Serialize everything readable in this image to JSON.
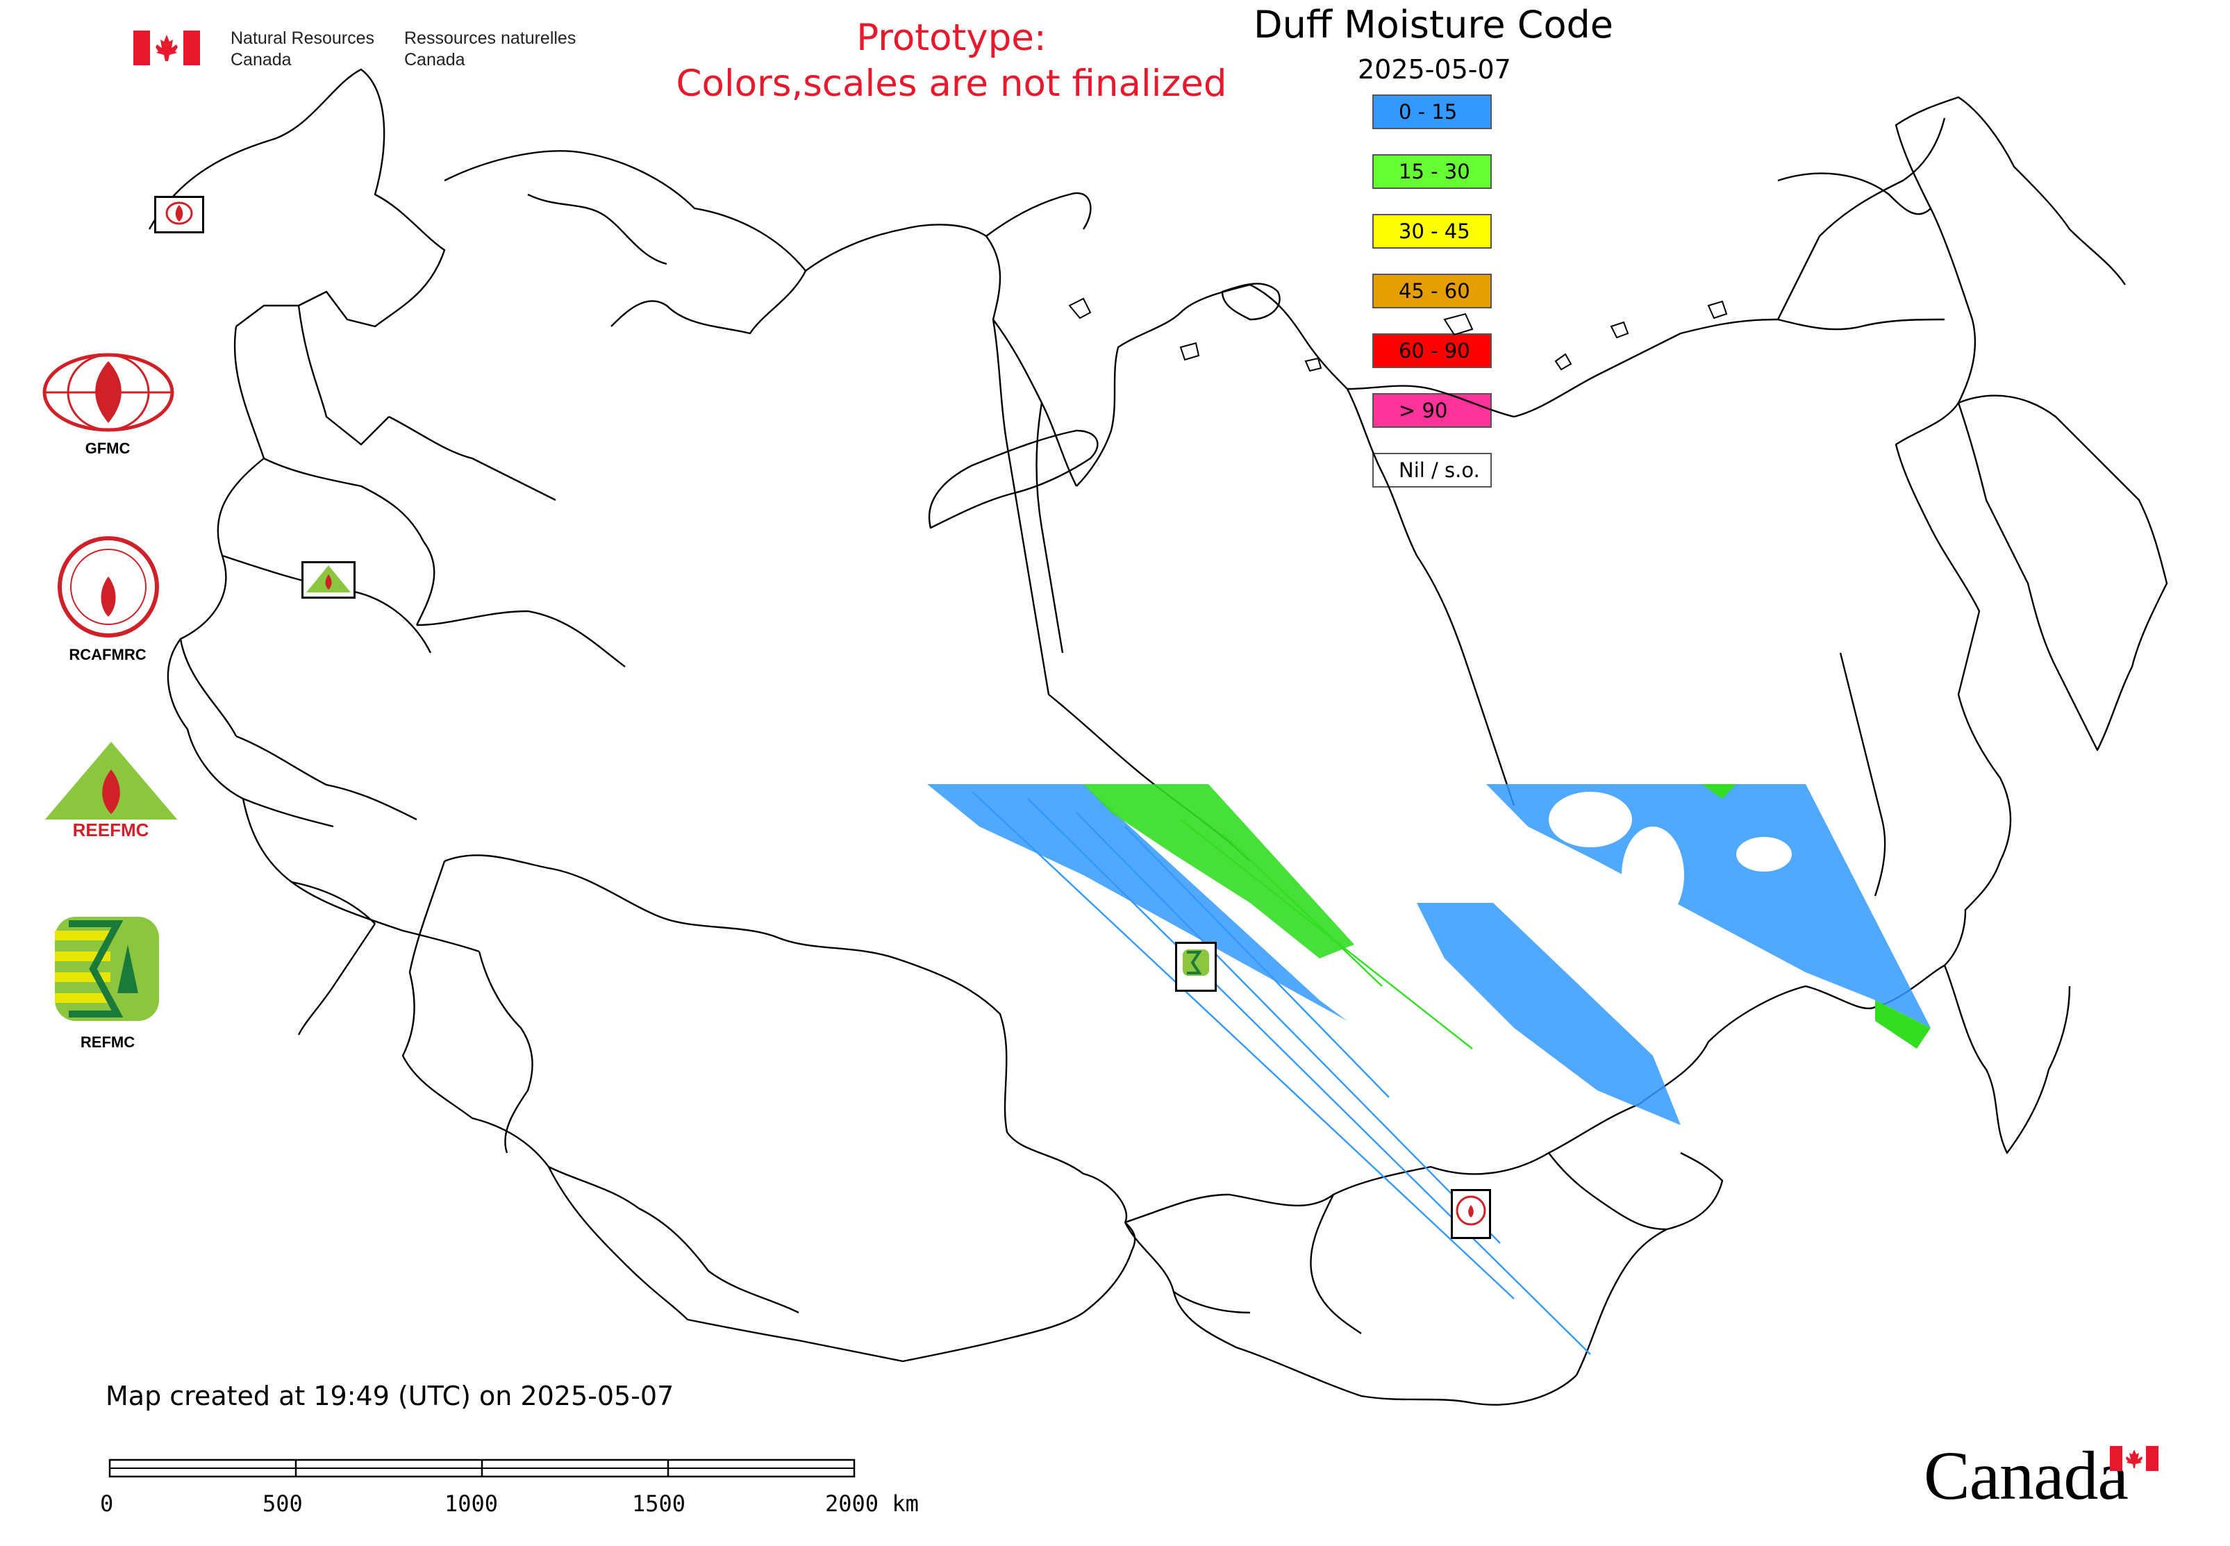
{
  "header": {
    "agency_en_1": "Natural Resources",
    "agency_en_2": "Canada",
    "agency_fr_1": "Ressources naturelles",
    "agency_fr_2": "Canada",
    "prototype_1": "Prototype:",
    "prototype_2": "Colors,scales are not finalized"
  },
  "map": {
    "title": "Duff Moisture Code",
    "date": "2025-05-07"
  },
  "legend": {
    "items": [
      {
        "label": "0 - 15",
        "color": "#3399ff"
      },
      {
        "label": "15 - 30",
        "color": "#66ff33"
      },
      {
        "label": "30 - 45",
        "color": "#ffff00"
      },
      {
        "label": "45 - 60",
        "color": "#e59e00"
      },
      {
        "label": "60 - 90",
        "color": "#ff0000"
      },
      {
        "label": "> 90",
        "color": "#ff3399"
      },
      {
        "label": "Nil / s.o.",
        "color": "#ffffff"
      }
    ]
  },
  "logos": {
    "gfmc": "GFMC",
    "rcafmrc": "RCAFMRC",
    "reefmc_badge": "REEFMC",
    "refmc": "REFMC",
    "rcafmrc_badge": "RCAFMRC"
  },
  "footer": {
    "created": "Map created at 19:49 (UTC) on 2025-05-07",
    "scale_labels": [
      "0",
      "500",
      "1000",
      "1500",
      "2000 km"
    ]
  },
  "wordmark": "Canada",
  "icons": [
    "canada-flag-icon",
    "gfmc-emblem-icon",
    "rcafmrc-emblem-icon",
    "reefmc-emblem-icon",
    "refmc-emblem-icon",
    "maple-leaf-icon"
  ]
}
